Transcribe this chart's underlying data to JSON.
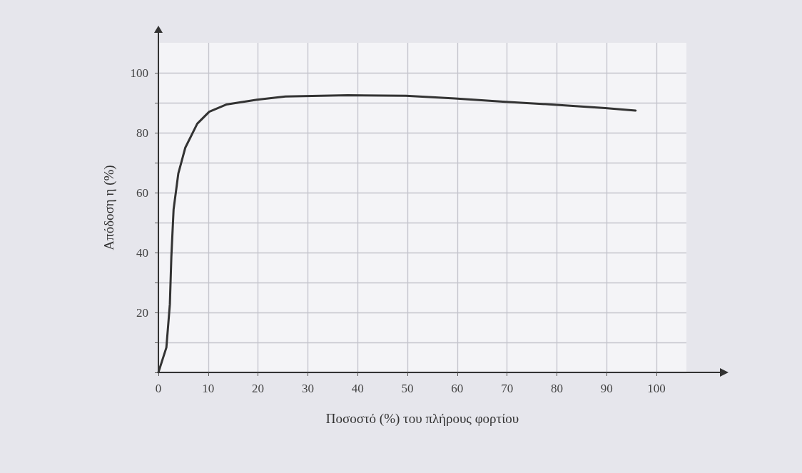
{
  "chart_data": {
    "type": "line",
    "xlabel": "Ποσοστό (%) του πλήρους φορτίου",
    "ylabel": "Απόδοση η (%)",
    "x": [
      0,
      1.6,
      2.3,
      2.6,
      3.05,
      4.0,
      5.4,
      7.8,
      10.2,
      13.6,
      19.8,
      25.5,
      38,
      49.7,
      59.5,
      69.7,
      80,
      89.7,
      95.8
    ],
    "series": [
      {
        "color": "#333333",
        "values": [
          0,
          8.3,
          22.7,
          38.6,
          54.4,
          66.4,
          75,
          83,
          87,
          89.4,
          91,
          92.1,
          92.5,
          92.3,
          91.4,
          90.3,
          89.3,
          88.2,
          87.4
        ]
      }
    ],
    "xlim": [
      0,
      106
    ],
    "ylim": [
      0,
      110
    ],
    "xticks": [
      0,
      10,
      20,
      30,
      40,
      50,
      60,
      70,
      80,
      90,
      100
    ],
    "yticks": [
      {
        "value": 0,
        "label": null
      },
      {
        "value": 10,
        "label": null
      },
      20,
      {
        "value": 30,
        "label": null
      },
      40,
      {
        "value": 50,
        "label": null
      },
      60,
      {
        "value": 70,
        "label": null
      },
      80,
      {
        "value": 90,
        "label": null
      },
      100
    ],
    "grid": true,
    "marker": "none",
    "line_style": "solid"
  }
}
